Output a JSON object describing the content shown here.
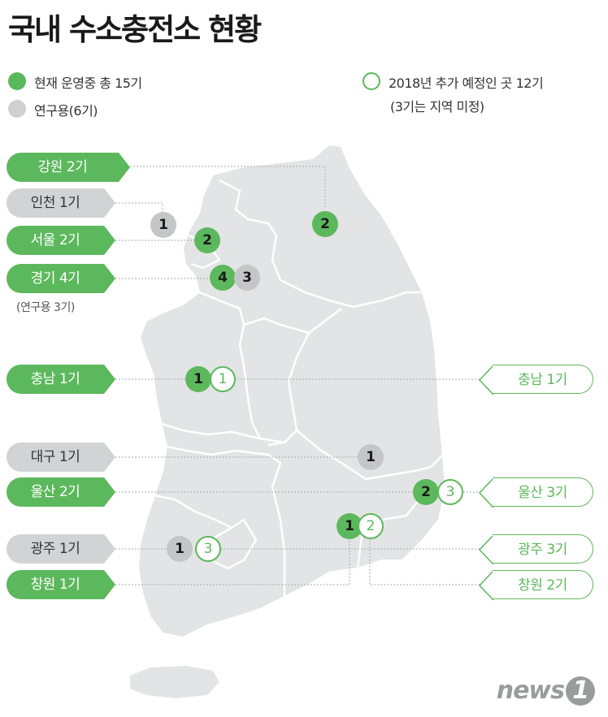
{
  "title": "국내 수소충전소 현황",
  "legend": {
    "operating": "현재 운영중 총 15기",
    "research": "연구용(6기)",
    "planned": "2018년 추가 예정인 곳 12기",
    "planned_note": "(3기는 지역 미정)"
  },
  "left_tags": {
    "gangwon": "강원 2기",
    "incheon": "인천 1기",
    "seoul": "서울 2기",
    "gyeonggi": "경기 4기",
    "gyeonggi_note": "(연구용 3기)",
    "chungnam": "충남 1기",
    "daegu": "대구 1기",
    "ulsan": "울산 2기",
    "gwangju": "광주 1기",
    "changwon": "창원 1기"
  },
  "right_tags": {
    "chungnam": "충남 1기",
    "ulsan": "울산 3기",
    "gwangju": "광주 3기",
    "changwon": "창원 2기"
  },
  "markers": {
    "incheon_gray": "1",
    "seoul_green": "2",
    "gangwon_green": "2",
    "gyeonggi_green": "4",
    "gyeonggi_gray": "3",
    "chungnam_green": "1",
    "chungnam_plan": "1",
    "daegu_gray": "1",
    "ulsan_green": "2",
    "ulsan_plan": "3",
    "changwon_green": "1",
    "changwon_plan": "2",
    "gwangju_gray": "1",
    "gwangju_plan": "3"
  },
  "colors": {
    "operating": "#5cb85c",
    "research": "#cfd0d1",
    "map_fill": "#e3e4e5"
  },
  "logo": {
    "word": "news",
    "mark": "1"
  }
}
